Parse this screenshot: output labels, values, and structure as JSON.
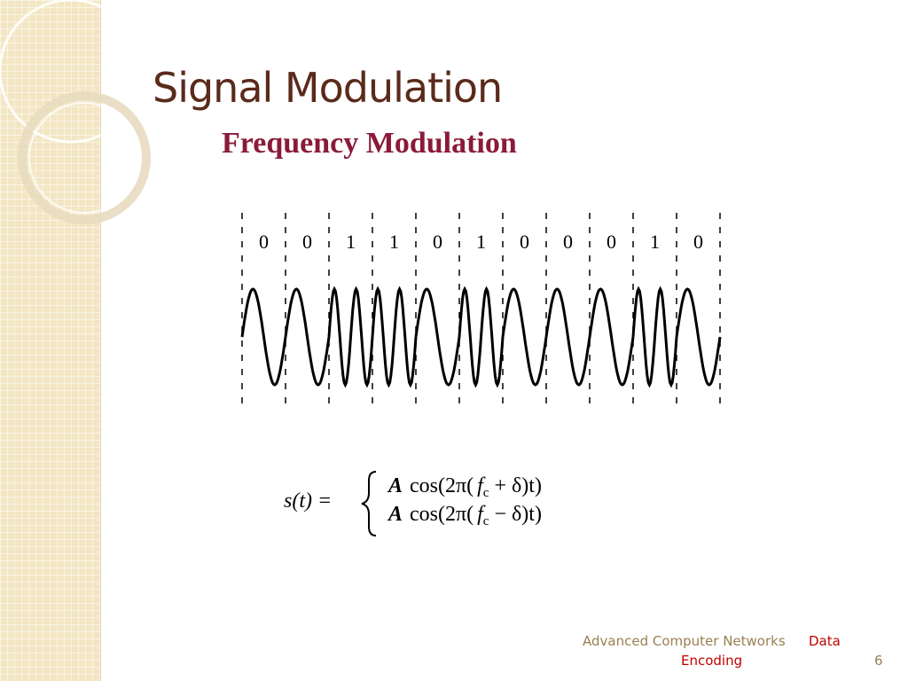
{
  "title": "Signal Modulation",
  "subtitle": "Frequency Modulation",
  "bits": [
    "0",
    "0",
    "1",
    "1",
    "0",
    "1",
    "0",
    "0",
    "0",
    "1",
    "0"
  ],
  "formula": {
    "lhs": "s(t) =",
    "cases": [
      {
        "amp": "A",
        "func": "cos(2π(",
        "var": "f",
        "sub": "c",
        "rest": " + δ)t)"
      },
      {
        "amp": "A",
        "func": "cos(2π(",
        "var": "f",
        "sub": "c",
        "rest": " − δ)t)"
      }
    ]
  },
  "footer": {
    "course": "Advanced Computer Networks",
    "topic_1": "Data",
    "topic_2": "Encoding",
    "page": "6"
  }
}
